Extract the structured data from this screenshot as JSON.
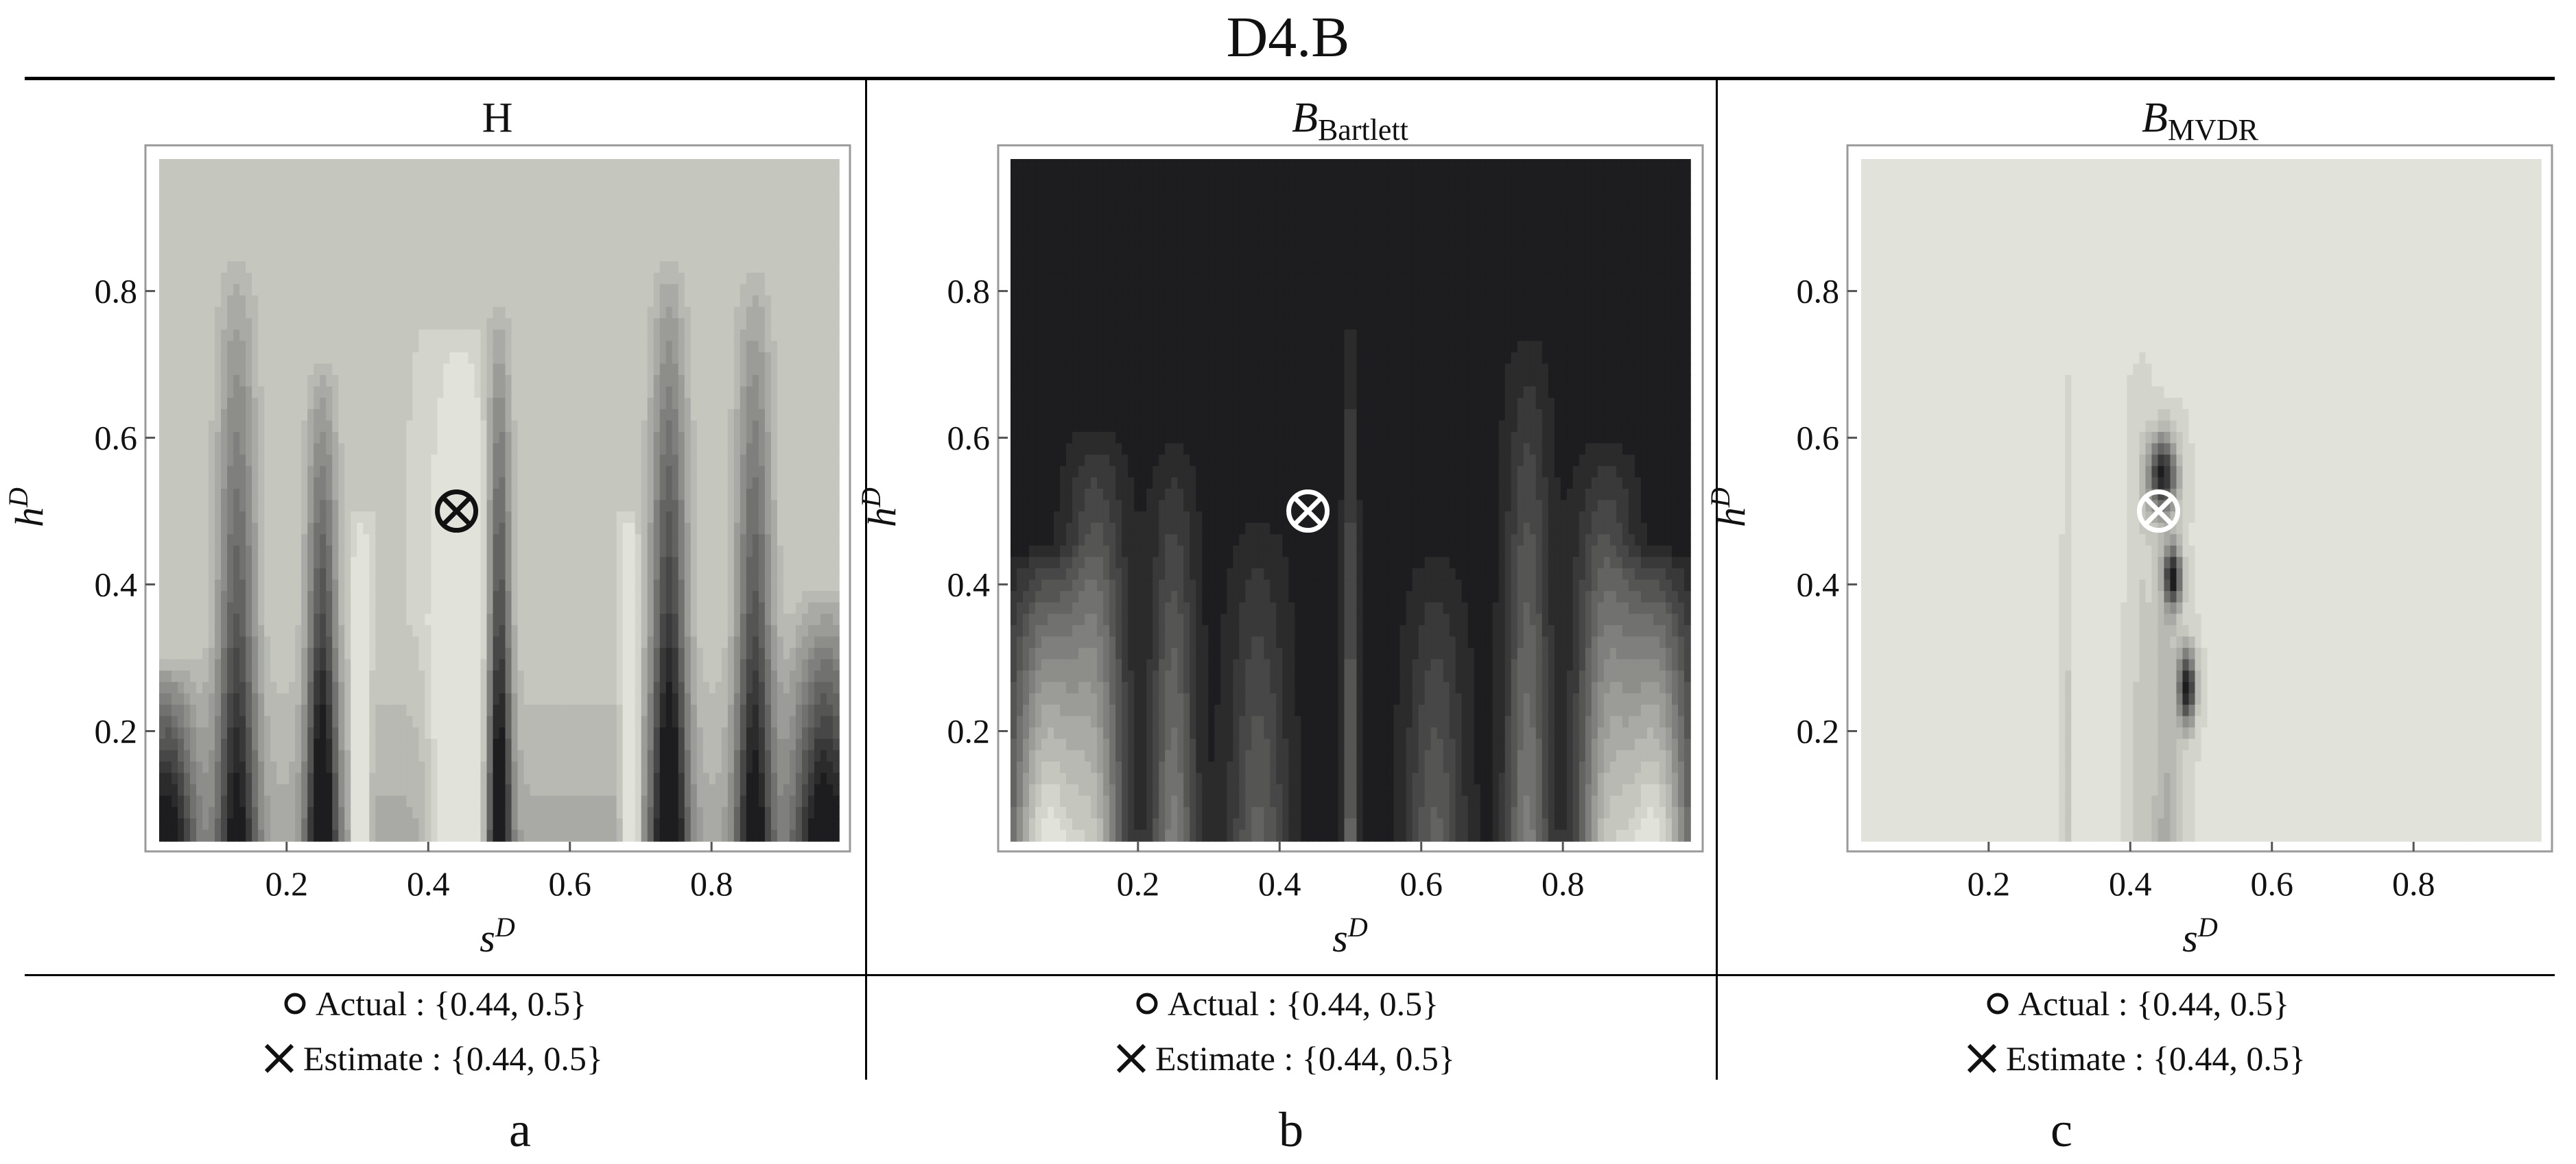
{
  "figure_title": "D4.B",
  "colors": {
    "light": "#e1e3da",
    "dark": "#1d1d1f",
    "mid": "#8a8f8c"
  },
  "chart_data": [
    {
      "type": "heatmap",
      "title": "H",
      "title_sub": "",
      "xlabel": "s",
      "xlabel_sup": "D",
      "ylabel": "h",
      "ylabel_sup": "D",
      "xlim": [
        0.02,
        0.98
      ],
      "ylim": [
        0.05,
        0.98
      ],
      "x_ticks": [
        0.2,
        0.4,
        0.6,
        0.8
      ],
      "y_ticks": [
        0.2,
        0.4,
        0.6,
        0.8
      ],
      "x_tick_labels": [
        "0.2",
        "0.4",
        "0.6",
        "0.8"
      ],
      "y_tick_labels": [
        "0.2",
        "0.4",
        "0.6",
        "0.8"
      ],
      "background": "light",
      "features": [
        {
          "s": 0.03,
          "w": 0.04,
          "top": 0.3,
          "kind": "dark",
          "strength": 0.9
        },
        {
          "s": 0.13,
          "w": 0.028,
          "top": 0.87,
          "kind": "dark",
          "strength": 0.8
        },
        {
          "s": 0.25,
          "w": 0.022,
          "top": 0.72,
          "kind": "dark",
          "strength": 1.0
        },
        {
          "s": 0.305,
          "w": 0.01,
          "top": 0.5,
          "kind": "light",
          "strength": 0.9
        },
        {
          "s": 0.5,
          "w": 0.017,
          "top": 0.8,
          "kind": "dark",
          "strength": 1.0
        },
        {
          "s": 0.685,
          "w": 0.01,
          "top": 0.5,
          "kind": "light",
          "strength": 0.9
        },
        {
          "s": 0.74,
          "w": 0.026,
          "top": 0.86,
          "kind": "dark",
          "strength": 1.0
        },
        {
          "s": 0.86,
          "w": 0.026,
          "top": 0.85,
          "kind": "dark",
          "strength": 0.85
        },
        {
          "s": 0.96,
          "w": 0.045,
          "top": 0.4,
          "kind": "dark",
          "strength": 0.9
        },
        {
          "s": 0.445,
          "w": 0.035,
          "top": 0.75,
          "kind": "light",
          "strength": 0.6
        }
      ],
      "marker": {
        "s": 0.44,
        "h": 0.5,
        "color": "#111111"
      }
    },
    {
      "type": "heatmap",
      "title": "B",
      "title_sub": "Bartlett",
      "xlabel": "s",
      "xlabel_sup": "D",
      "ylabel": "h",
      "ylabel_sup": "D",
      "xlim": [
        0.02,
        0.98
      ],
      "ylim": [
        0.05,
        0.98
      ],
      "x_ticks": [
        0.2,
        0.4,
        0.6,
        0.8
      ],
      "y_ticks": [
        0.2,
        0.4,
        0.6,
        0.8
      ],
      "x_tick_labels": [
        "0.2",
        "0.4",
        "0.6",
        "0.8"
      ],
      "y_tick_labels": [
        "0.2",
        "0.4",
        "0.6",
        "0.8"
      ],
      "background": "dark",
      "features": [
        {
          "s": 0.07,
          "w": 0.05,
          "top": 0.45,
          "kind": "light",
          "strength": 1.0
        },
        {
          "s": 0.14,
          "w": 0.04,
          "top": 0.62,
          "kind": "light",
          "strength": 0.7
        },
        {
          "s": 0.25,
          "w": 0.03,
          "top": 0.6,
          "kind": "light",
          "strength": 0.5
        },
        {
          "s": 0.37,
          "w": 0.04,
          "top": 0.5,
          "kind": "light",
          "strength": 0.35
        },
        {
          "s": 0.5,
          "w": 0.01,
          "top": 0.78,
          "kind": "light",
          "strength": 0.4
        },
        {
          "s": 0.62,
          "w": 0.04,
          "top": 0.45,
          "kind": "light",
          "strength": 0.35
        },
        {
          "s": 0.75,
          "w": 0.03,
          "top": 0.75,
          "kind": "light",
          "strength": 0.5
        },
        {
          "s": 0.86,
          "w": 0.04,
          "top": 0.6,
          "kind": "light",
          "strength": 0.7
        },
        {
          "s": 0.93,
          "w": 0.05,
          "top": 0.45,
          "kind": "light",
          "strength": 1.0
        }
      ],
      "marker": {
        "s": 0.44,
        "h": 0.5,
        "color": "#ffffff"
      }
    },
    {
      "type": "heatmap",
      "title": "B",
      "title_sub": "MVDR",
      "xlabel": "s",
      "xlabel_sup": "D",
      "ylabel": "h",
      "ylabel_sup": "D",
      "xlim": [
        0.02,
        0.98
      ],
      "ylim": [
        0.05,
        0.98
      ],
      "x_ticks": [
        0.2,
        0.4,
        0.6,
        0.8
      ],
      "y_ticks": [
        0.2,
        0.4,
        0.6,
        0.8
      ],
      "x_tick_labels": [
        "0.2",
        "0.4",
        "0.6",
        "0.8"
      ],
      "y_tick_labels": [
        "0.2",
        "0.4",
        "0.6",
        "0.8"
      ],
      "background": "light",
      "features": [
        {
          "s": 0.31,
          "w": 0.004,
          "top": 0.7,
          "kind": "dark",
          "strength": 0.15
        },
        {
          "s": 0.415,
          "w": 0.015,
          "top": 0.72,
          "kind": "dark",
          "strength": 0.12
        },
        {
          "s": 0.45,
          "w": 0.02,
          "top": 0.65,
          "kind": "dark",
          "strength": 0.25
        }
      ],
      "blobs": [
        {
          "s": 0.445,
          "h": 0.55,
          "rs": 0.02,
          "rh": 0.05,
          "strength": 0.9
        },
        {
          "s": 0.46,
          "h": 0.41,
          "rs": 0.012,
          "rh": 0.04,
          "strength": 0.95
        },
        {
          "s": 0.48,
          "h": 0.26,
          "rs": 0.012,
          "rh": 0.05,
          "strength": 1.0
        }
      ],
      "marker": {
        "s": 0.44,
        "h": 0.5,
        "color": "#ffffff"
      }
    }
  ],
  "footers": [
    {
      "actual_label": "Actual : {0.44, 0.5}",
      "estimate_label": "Estimate : {0.44, 0.5}",
      "letter": "a"
    },
    {
      "actual_label": "Actual : {0.44, 0.5}",
      "estimate_label": "Estimate : {0.44, 0.5}",
      "letter": "b"
    },
    {
      "actual_label": "Actual : {0.44, 0.5}",
      "estimate_label": "Estimate : {0.44, 0.5}",
      "letter": "c"
    }
  ]
}
